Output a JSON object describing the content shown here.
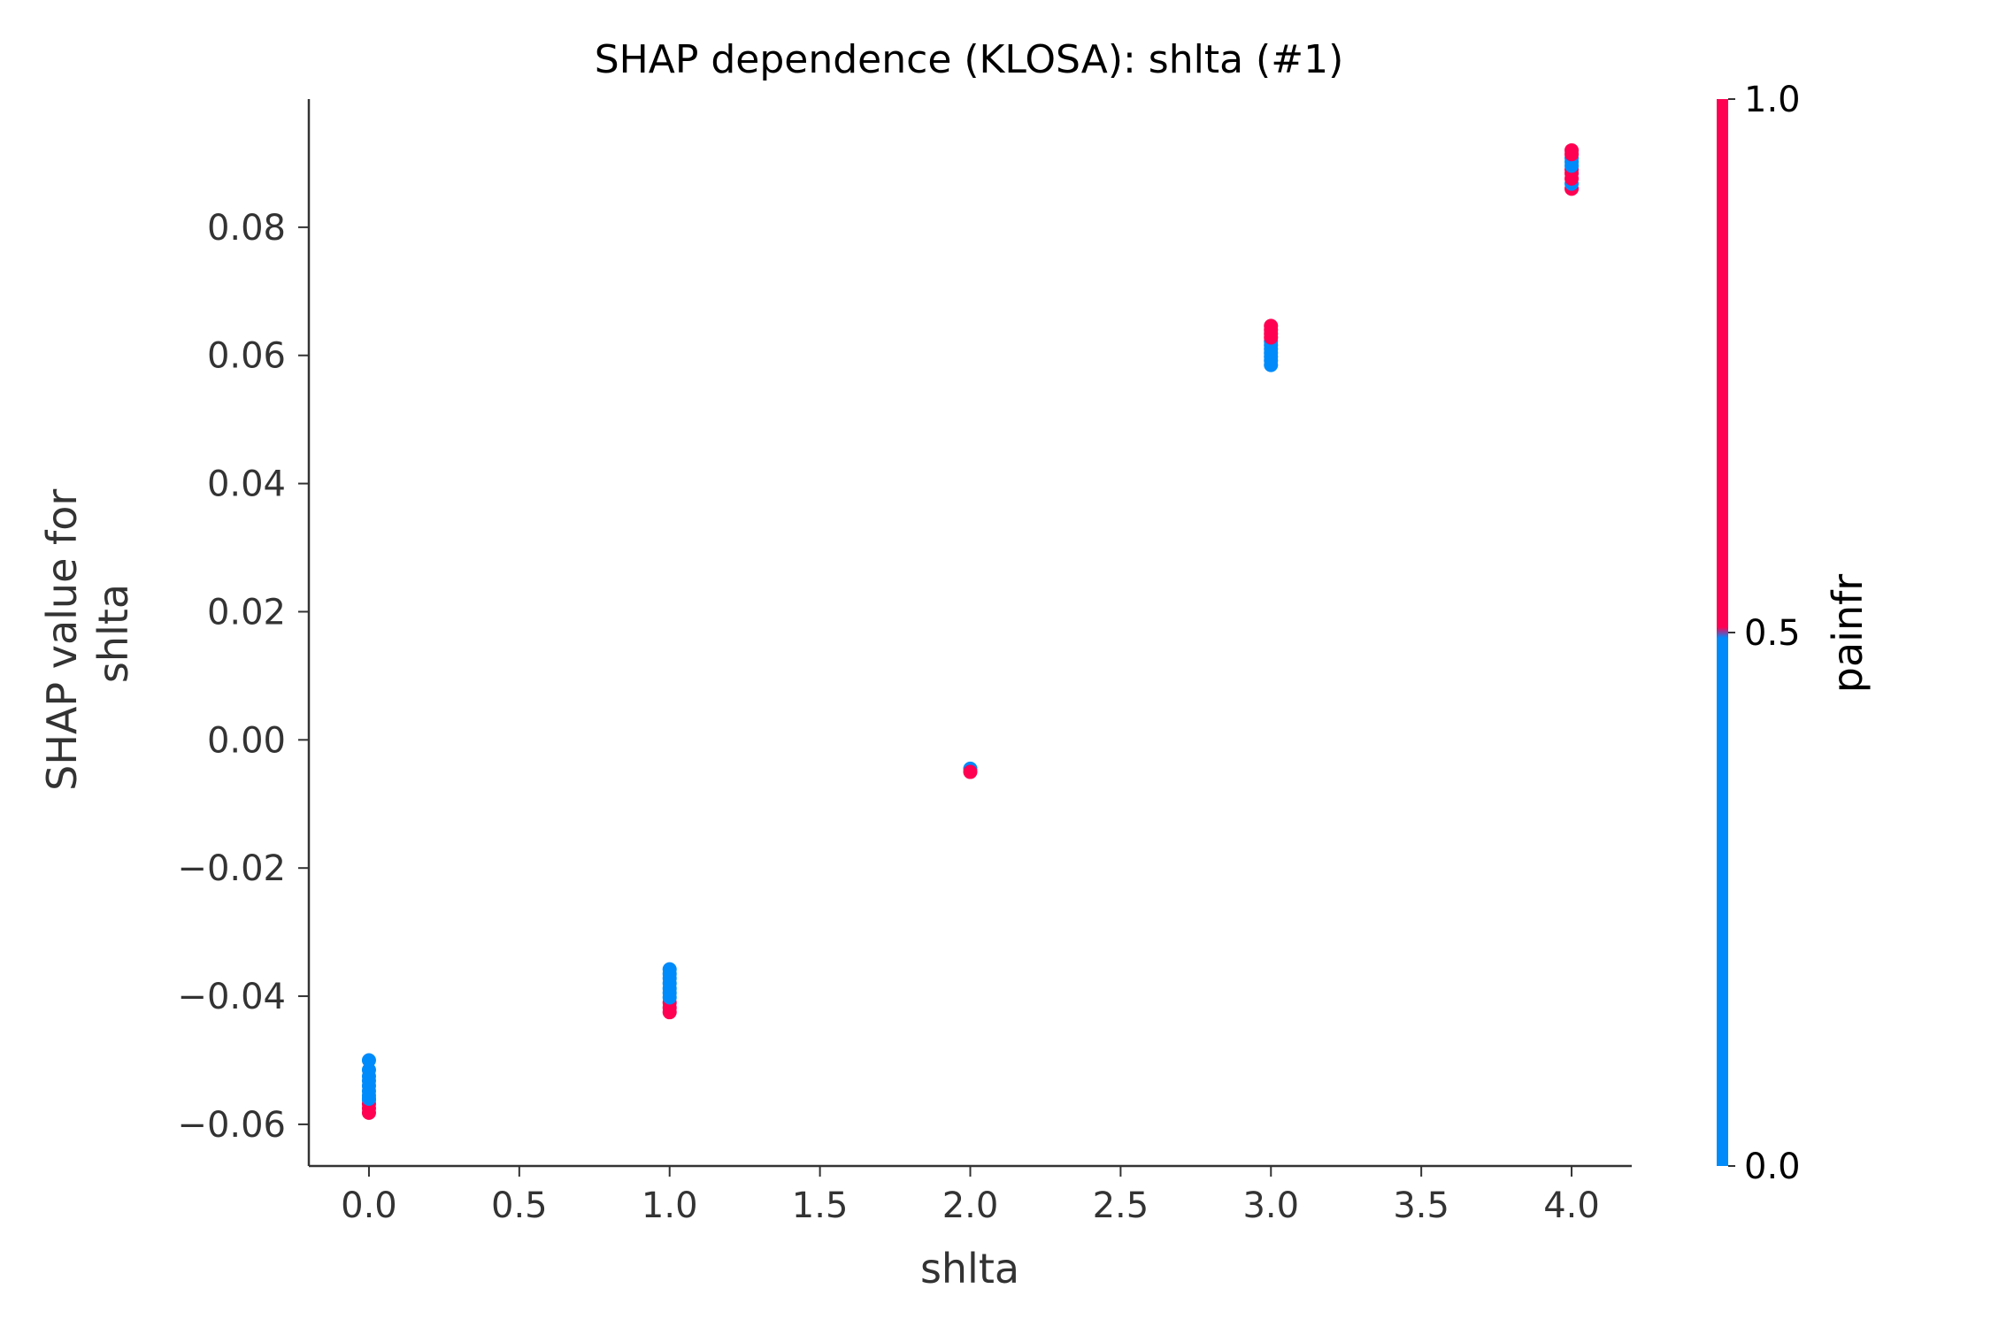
{
  "chart_data": {
    "type": "scatter",
    "title": "SHAP dependence (KLOSA): shlta (#1)",
    "xlabel": "shlta",
    "ylabel": [
      "SHAP value for",
      "shlta"
    ],
    "xlim": [
      -0.2,
      4.2
    ],
    "ylim": [
      -0.0665,
      0.1
    ],
    "xticks": [
      0.0,
      0.5,
      1.0,
      1.5,
      2.0,
      2.5,
      3.0,
      3.5,
      4.0
    ],
    "xtick_labels": [
      "0.0",
      "0.5",
      "1.0",
      "1.5",
      "2.0",
      "2.5",
      "3.0",
      "3.5",
      "4.0"
    ],
    "yticks": [
      -0.06,
      -0.04,
      -0.02,
      0.0,
      0.02,
      0.04,
      0.06,
      0.08
    ],
    "ytick_labels": [
      "−0.06",
      "−0.04",
      "−0.02",
      "0.00",
      "0.02",
      "0.04",
      "0.06",
      "0.08"
    ],
    "grid": false,
    "colorbar": {
      "label": "painfr",
      "ticks": [
        0.0,
        0.5,
        1.0
      ],
      "tick_labels": [
        "0.0",
        "0.5",
        "1.0"
      ],
      "low_color": "#008bfb",
      "high_color": "#ff0052"
    },
    "colors": {
      "low": "#008bfb",
      "high": "#ff0052",
      "axis": "#333333",
      "text": "#333333"
    },
    "points": [
      {
        "x": 0.0,
        "y": -0.05,
        "c": 0
      },
      {
        "x": 0.0,
        "y": -0.0515,
        "c": 0
      },
      {
        "x": 0.0,
        "y": -0.0525,
        "c": 0
      },
      {
        "x": 0.0,
        "y": -0.0532,
        "c": 0
      },
      {
        "x": 0.0,
        "y": -0.054,
        "c": 0
      },
      {
        "x": 0.0,
        "y": -0.0548,
        "c": 0
      },
      {
        "x": 0.0,
        "y": -0.0555,
        "c": 0
      },
      {
        "x": 0.0,
        "y": -0.0562,
        "c": 0
      },
      {
        "x": 0.0,
        "y": -0.0568,
        "c": 1
      },
      {
        "x": 0.0,
        "y": -0.0575,
        "c": 1
      },
      {
        "x": 0.0,
        "y": -0.0582,
        "c": 1
      },
      {
        "x": 0.0,
        "y": -0.056,
        "c": 0
      },
      {
        "x": 1.0,
        "y": -0.0425,
        "c": 1
      },
      {
        "x": 1.0,
        "y": -0.0418,
        "c": 1
      },
      {
        "x": 1.0,
        "y": -0.041,
        "c": 1
      },
      {
        "x": 1.0,
        "y": -0.0402,
        "c": 0
      },
      {
        "x": 1.0,
        "y": -0.0395,
        "c": 0
      },
      {
        "x": 1.0,
        "y": -0.0388,
        "c": 0
      },
      {
        "x": 1.0,
        "y": -0.038,
        "c": 0
      },
      {
        "x": 1.0,
        "y": -0.0372,
        "c": 0
      },
      {
        "x": 1.0,
        "y": -0.0365,
        "c": 0
      },
      {
        "x": 1.0,
        "y": -0.0358,
        "c": 0
      },
      {
        "x": 2.0,
        "y": -0.0045,
        "c": 0
      },
      {
        "x": 2.0,
        "y": -0.005,
        "c": 1
      },
      {
        "x": 3.0,
        "y": 0.0585,
        "c": 0
      },
      {
        "x": 3.0,
        "y": 0.0592,
        "c": 0
      },
      {
        "x": 3.0,
        "y": 0.0598,
        "c": 0
      },
      {
        "x": 3.0,
        "y": 0.0604,
        "c": 0
      },
      {
        "x": 3.0,
        "y": 0.061,
        "c": 0
      },
      {
        "x": 3.0,
        "y": 0.0616,
        "c": 0
      },
      {
        "x": 3.0,
        "y": 0.0622,
        "c": 0
      },
      {
        "x": 3.0,
        "y": 0.0628,
        "c": 1
      },
      {
        "x": 3.0,
        "y": 0.0634,
        "c": 1
      },
      {
        "x": 3.0,
        "y": 0.064,
        "c": 1
      },
      {
        "x": 3.0,
        "y": 0.0646,
        "c": 1
      },
      {
        "x": 4.0,
        "y": 0.086,
        "c": 1
      },
      {
        "x": 4.0,
        "y": 0.0868,
        "c": 0
      },
      {
        "x": 4.0,
        "y": 0.0876,
        "c": 1
      },
      {
        "x": 4.0,
        "y": 0.0884,
        "c": 1
      },
      {
        "x": 4.0,
        "y": 0.089,
        "c": 1
      },
      {
        "x": 4.0,
        "y": 0.0896,
        "c": 0
      },
      {
        "x": 4.0,
        "y": 0.0902,
        "c": 0
      },
      {
        "x": 4.0,
        "y": 0.0908,
        "c": 0
      },
      {
        "x": 4.0,
        "y": 0.0914,
        "c": 1
      },
      {
        "x": 4.0,
        "y": 0.092,
        "c": 1
      }
    ]
  }
}
